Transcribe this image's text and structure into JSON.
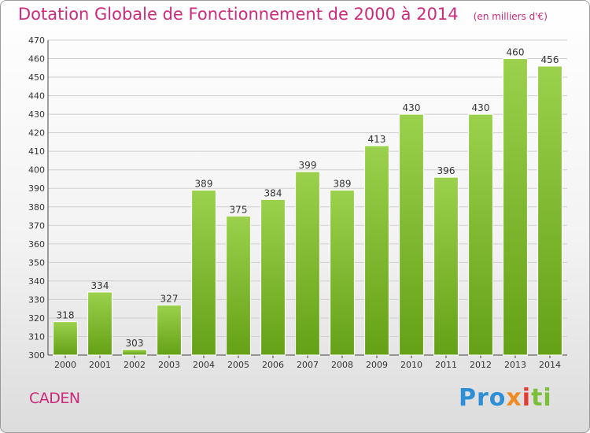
{
  "header": {
    "title": "Dotation Globale de Fonctionnement de 2000 à 2014",
    "unit": "(en milliers d'€)"
  },
  "footer": {
    "place": "CADEN",
    "logo_parts": [
      "Pro",
      "x",
      "i",
      "ti"
    ]
  },
  "colors": {
    "title": "#cc2a7a",
    "bar_light": "#9bd14c",
    "bar_dark": "#64a116",
    "grid": "#cfcfcf"
  },
  "chart_data": {
    "type": "bar",
    "title": "Dotation Globale de Fonctionnement de 2000 à 2014",
    "subtitle": "(en milliers d'€)",
    "xlabel": "",
    "ylabel": "",
    "categories": [
      "2000",
      "2001",
      "2002",
      "2003",
      "2004",
      "2005",
      "2006",
      "2007",
      "2008",
      "2009",
      "2010",
      "2011",
      "2012",
      "2013",
      "2014"
    ],
    "values": [
      318,
      334,
      303,
      327,
      389,
      375,
      384,
      399,
      389,
      413,
      430,
      396,
      430,
      460,
      456
    ],
    "ylim": [
      300,
      470
    ],
    "yticks": [
      300,
      310,
      320,
      330,
      340,
      350,
      360,
      370,
      380,
      390,
      400,
      410,
      420,
      430,
      440,
      450,
      460,
      470
    ],
    "grid": true,
    "data_labels": true
  }
}
